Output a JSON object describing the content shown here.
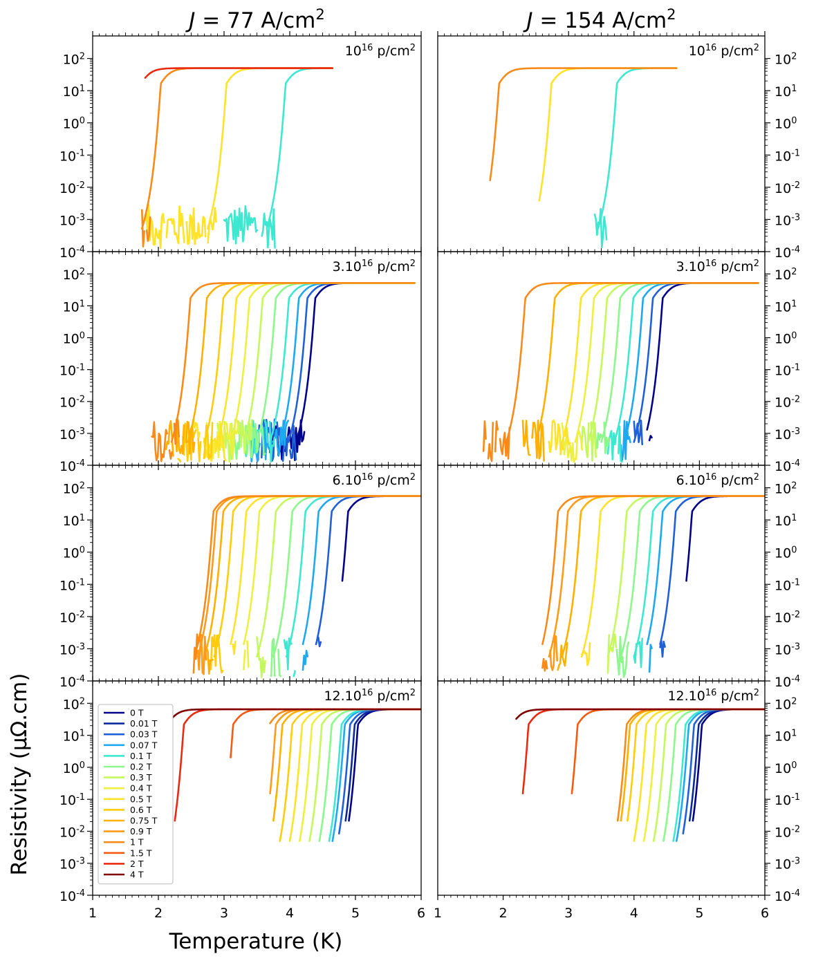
{
  "chart_data": {
    "type": "line",
    "columns": [
      {
        "title": "J = 77 A/cm²",
        "title_var": "J",
        "title_value": "77",
        "title_unit": "A/cm",
        "title_exp": "2"
      },
      {
        "title": "J = 154 A/cm²",
        "title_var": "J",
        "title_value": "154",
        "title_unit": "A/cm",
        "title_exp": "2"
      }
    ],
    "rows": [
      {
        "label": "10¹⁶ p/cm²",
        "label_prefix": "",
        "label_exp": "16",
        "label_unit": "p/cm",
        "label_unit_exp": "2"
      },
      {
        "label": "3.10¹⁶ p/cm²",
        "label_prefix": "3.",
        "label_exp": "16",
        "label_unit": "p/cm",
        "label_unit_exp": "2"
      },
      {
        "label": "6.10¹⁶ p/cm²",
        "label_prefix": "6.",
        "label_exp": "16",
        "label_unit": "p/cm",
        "label_unit_exp": "2"
      },
      {
        "label": "12.10¹⁶ p/cm²",
        "label_prefix": "12.",
        "label_exp": "16",
        "label_unit": "p/cm",
        "label_unit_exp": "2"
      }
    ],
    "xlabel": "Temperature (K)",
    "ylabel": "Resistivity (μΩ.cm)",
    "xlim": [
      1,
      6
    ],
    "ylim": [
      0.0001,
      500
    ],
    "yscale": "log",
    "xticks": [
      "1",
      "2",
      "3",
      "4",
      "5",
      "6"
    ],
    "yticks": [
      {
        "base": "10",
        "exp": "2"
      },
      {
        "base": "10",
        "exp": "1"
      },
      {
        "base": "10",
        "exp": "0"
      },
      {
        "base": "10",
        "exp": "-1"
      },
      {
        "base": "10",
        "exp": "-2"
      },
      {
        "base": "10",
        "exp": "-3"
      },
      {
        "base": "10",
        "exp": "-4"
      }
    ],
    "legend_placement": "bottom-left panel, left",
    "series_fields": "name, color, transition midpoint Tc (K), normal-state value rho_n (μΩ.cm)",
    "series": [
      {
        "name": "0 T",
        "color": "#00008b"
      },
      {
        "name": "0.01 T",
        "color": "#0a2a9c"
      },
      {
        "name": "0.03 T",
        "color": "#1f5fd8"
      },
      {
        "name": "0.07 T",
        "color": "#1ea8f0"
      },
      {
        "name": "0.1 T",
        "color": "#3ee8d0"
      },
      {
        "name": "0.2 T",
        "color": "#8cf78a"
      },
      {
        "name": "0.3 T",
        "color": "#c4f85c"
      },
      {
        "name": "0.4 T",
        "color": "#eef040"
      },
      {
        "name": "0.5 T",
        "color": "#ffe22a"
      },
      {
        "name": "0.6 T",
        "color": "#ffcc10"
      },
      {
        "name": "0.75 T",
        "color": "#ffb000"
      },
      {
        "name": "0.9 T",
        "color": "#ff9a1a"
      },
      {
        "name": "1 T",
        "color": "#f88a1a"
      },
      {
        "name": "1.5 T",
        "color": "#f45a10"
      },
      {
        "name": "2 T",
        "color": "#ea2a10"
      },
      {
        "name": "4 T",
        "color": "#800000"
      }
    ],
    "panels": [
      {
        "row": 0,
        "col": 0,
        "rho_n": 50,
        "tmax": 4.65,
        "curves": [
          {
            "series": "0.1 T",
            "tc": 4.0,
            "tmin": 3.0
          },
          {
            "series": "0.5 T",
            "tc": 3.1,
            "tmin": 1.8
          },
          {
            "series": "1 T",
            "tc": 2.1,
            "tmin": 1.75
          },
          {
            "series": "2 T",
            "tc": 1.8,
            "tmin": 1.8
          }
        ]
      },
      {
        "row": 0,
        "col": 1,
        "rho_n": 50,
        "tmax": 4.65,
        "curves": [
          {
            "series": "0.1 T",
            "tc": 3.8,
            "tmin": 3.4
          },
          {
            "series": "0.5 T",
            "tc": 2.8,
            "tmin": 2.55
          },
          {
            "series": "1 T",
            "tc": 2.0,
            "tmin": 1.8
          }
        ]
      },
      {
        "row": 1,
        "col": 0,
        "rho_n": 52,
        "tmax": 5.9,
        "curves": [
          {
            "series": "0 T",
            "tc": 4.45,
            "tmin": 3.7
          },
          {
            "series": "0.03 T",
            "tc": 4.33,
            "tmin": 3.5
          },
          {
            "series": "0.07 T",
            "tc": 4.2,
            "tmin": 3.4
          },
          {
            "series": "0.1 T",
            "tc": 4.05,
            "tmin": 3.3
          },
          {
            "series": "0.2 T",
            "tc": 3.85,
            "tmin": 3.1
          },
          {
            "series": "0.3 T",
            "tc": 3.65,
            "tmin": 2.9
          },
          {
            "series": "0.4 T",
            "tc": 3.45,
            "tmin": 2.7
          },
          {
            "series": "0.5 T",
            "tc": 3.25,
            "tmin": 2.5
          },
          {
            "series": "0.6 T",
            "tc": 3.05,
            "tmin": 2.3
          },
          {
            "series": "0.75 T",
            "tc": 2.8,
            "tmin": 2.1
          },
          {
            "series": "1 T",
            "tc": 2.55,
            "tmin": 1.9
          }
        ]
      },
      {
        "row": 1,
        "col": 1,
        "rho_n": 52,
        "tmax": 5.9,
        "curves": [
          {
            "series": "0 T",
            "tc": 4.5,
            "tmin": 4.2
          },
          {
            "series": "0.03 T",
            "tc": 4.35,
            "tmin": 4.0
          },
          {
            "series": "0.07 T",
            "tc": 4.2,
            "tmin": 3.8
          },
          {
            "series": "0.1 T",
            "tc": 4.05,
            "tmin": 3.6
          },
          {
            "series": "0.2 T",
            "tc": 3.85,
            "tmin": 3.4
          },
          {
            "series": "0.3 T",
            "tc": 3.65,
            "tmin": 3.2
          },
          {
            "series": "0.4 T",
            "tc": 3.45,
            "tmin": 2.9
          },
          {
            "series": "0.5 T",
            "tc": 3.25,
            "tmin": 2.7
          },
          {
            "series": "0.75 T",
            "tc": 2.85,
            "tmin": 2.3
          },
          {
            "series": "1 T",
            "tc": 2.4,
            "tmin": 1.7
          }
        ]
      },
      {
        "row": 2,
        "col": 0,
        "rho_n": 55,
        "tmax": 6.0,
        "curves": [
          {
            "series": "0 T",
            "tc": 4.95,
            "tmin": 4.8
          },
          {
            "series": "0.03 T",
            "tc": 4.7,
            "tmin": 4.4
          },
          {
            "series": "0.07 T",
            "tc": 4.5,
            "tmin": 4.2
          },
          {
            "series": "0.1 T",
            "tc": 4.3,
            "tmin": 3.9
          },
          {
            "series": "0.2 T",
            "tc": 4.1,
            "tmin": 3.7
          },
          {
            "series": "0.3 T",
            "tc": 3.85,
            "tmin": 3.5
          },
          {
            "series": "0.4 T",
            "tc": 3.6,
            "tmin": 3.3
          },
          {
            "series": "0.5 T",
            "tc": 3.4,
            "tmin": 3.1
          },
          {
            "series": "0.6 T",
            "tc": 3.2,
            "tmin": 2.8
          },
          {
            "series": "0.75 T",
            "tc": 3.05,
            "tmin": 2.7
          },
          {
            "series": "0.9 T",
            "tc": 2.95,
            "tmin": 2.6
          },
          {
            "series": "1 T",
            "tc": 2.9,
            "tmin": 2.5
          }
        ]
      },
      {
        "row": 2,
        "col": 1,
        "rho_n": 55,
        "tmax": 6.0,
        "curves": [
          {
            "series": "0 T",
            "tc": 4.95,
            "tmin": 4.8
          },
          {
            "series": "0.03 T",
            "tc": 4.7,
            "tmin": 4.4
          },
          {
            "series": "0.07 T",
            "tc": 4.5,
            "tmin": 4.2
          },
          {
            "series": "0.1 T",
            "tc": 4.35,
            "tmin": 4.0
          },
          {
            "series": "0.2 T",
            "tc": 4.15,
            "tmin": 3.7
          },
          {
            "series": "0.3 T",
            "tc": 3.95,
            "tmin": 3.6
          },
          {
            "series": "0.5 T",
            "tc": 3.55,
            "tmin": 3.2
          },
          {
            "series": "0.75 T",
            "tc": 3.25,
            "tmin": 2.8
          },
          {
            "series": "0.9 T",
            "tc": 3.05,
            "tmin": 2.7
          },
          {
            "series": "1 T",
            "tc": 2.9,
            "tmin": 2.6
          }
        ]
      },
      {
        "row": 3,
        "col": 0,
        "rho_n": 65,
        "tmax": 6.0,
        "curves": [
          {
            "series": "0 T",
            "tc": 5.1,
            "tmin": 4.9
          },
          {
            "series": "0.01 T",
            "tc": 5.05,
            "tmin": 4.85
          },
          {
            "series": "0.03 T",
            "tc": 4.98,
            "tmin": 4.75
          },
          {
            "series": "0.07 T",
            "tc": 4.9,
            "tmin": 4.65
          },
          {
            "series": "0.1 T",
            "tc": 4.85,
            "tmin": 4.6
          },
          {
            "series": "0.2 T",
            "tc": 4.7,
            "tmin": 4.45
          },
          {
            "series": "0.3 T",
            "tc": 4.55,
            "tmin": 4.3
          },
          {
            "series": "0.4 T",
            "tc": 4.4,
            "tmin": 4.15
          },
          {
            "series": "0.5 T",
            "tc": 4.25,
            "tmin": 4.0
          },
          {
            "series": "0.6 T",
            "tc": 4.1,
            "tmin": 3.85
          },
          {
            "series": "0.75 T",
            "tc": 3.95,
            "tmin": 3.75
          },
          {
            "series": "0.9 T",
            "tc": 3.85,
            "tmin": 3.7
          },
          {
            "series": "1 T",
            "tc": 3.75,
            "tmin": 3.7
          },
          {
            "series": "1.5 T",
            "tc": 3.2,
            "tmin": 3.1
          },
          {
            "series": "2 T",
            "tc": 2.45,
            "tmin": 2.25
          },
          {
            "series": "4 T",
            "tc": 2.2,
            "tmin": 2.2
          }
        ]
      },
      {
        "row": 3,
        "col": 1,
        "rho_n": 65,
        "tmax": 6.0,
        "curves": [
          {
            "series": "0 T",
            "tc": 5.1,
            "tmin": 4.9
          },
          {
            "series": "0.01 T",
            "tc": 5.05,
            "tmin": 4.85
          },
          {
            "series": "0.03 T",
            "tc": 4.98,
            "tmin": 4.75
          },
          {
            "series": "0.07 T",
            "tc": 4.9,
            "tmin": 4.65
          },
          {
            "series": "0.1 T",
            "tc": 4.85,
            "tmin": 4.6
          },
          {
            "series": "0.2 T",
            "tc": 4.7,
            "tmin": 4.45
          },
          {
            "series": "0.3 T",
            "tc": 4.55,
            "tmin": 4.3
          },
          {
            "series": "0.4 T",
            "tc": 4.4,
            "tmin": 4.15
          },
          {
            "series": "0.5 T",
            "tc": 4.25,
            "tmin": 4.0
          },
          {
            "series": "0.6 T",
            "tc": 4.1,
            "tmin": 3.9
          },
          {
            "series": "0.75 T",
            "tc": 4.0,
            "tmin": 3.8
          },
          {
            "series": "1 T",
            "tc": 3.95,
            "tmin": 3.75
          },
          {
            "series": "1.5 T",
            "tc": 3.2,
            "tmin": 3.05
          },
          {
            "series": "2 T",
            "tc": 2.45,
            "tmin": 2.3
          },
          {
            "series": "4 T",
            "tc": 2.2,
            "tmin": 2.2
          }
        ]
      }
    ]
  }
}
